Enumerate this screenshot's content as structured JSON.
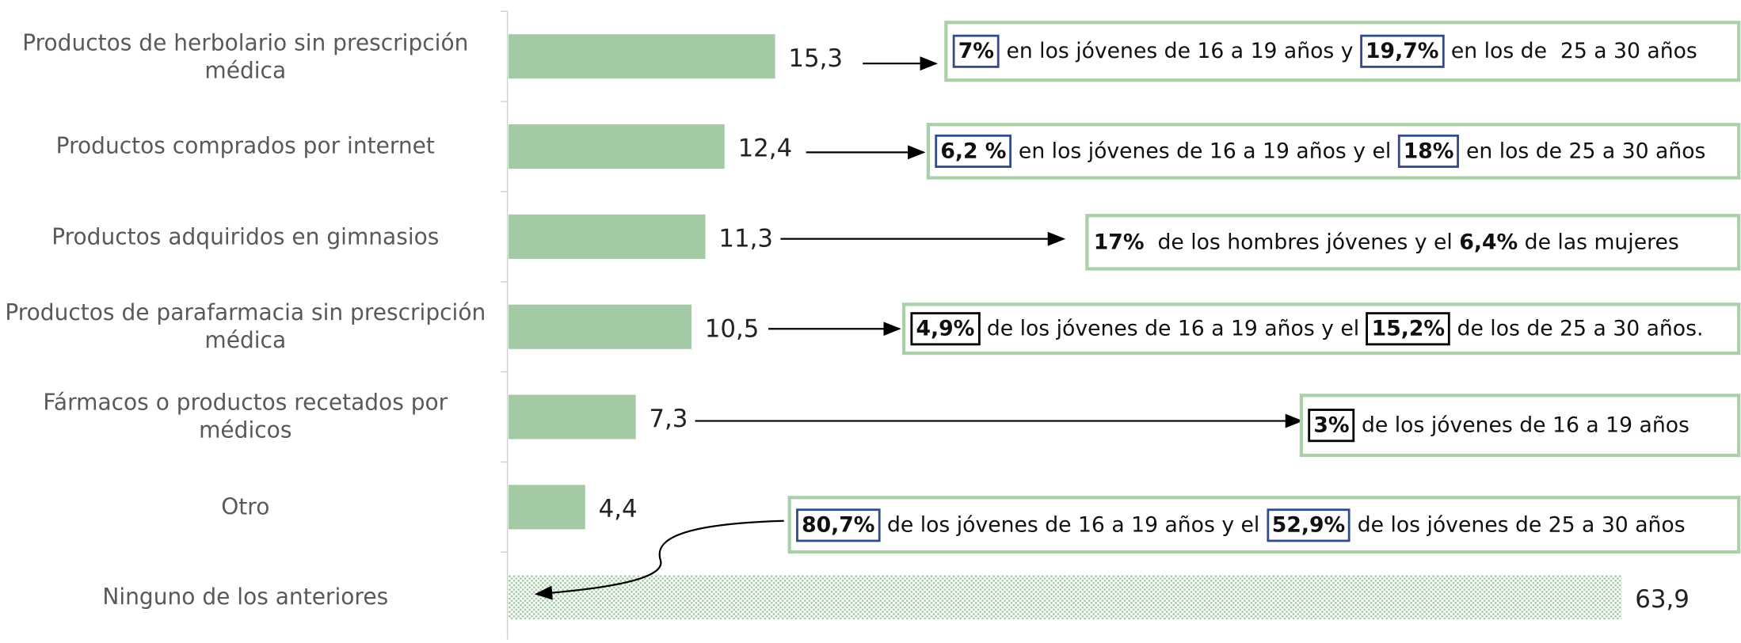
{
  "chart_data": {
    "type": "barh",
    "categories": [
      "Productos de herbolario sin prescripción médica",
      "Productos comprados por internet",
      "Productos adquiridos en gimnasios",
      "Productos de parafarmacia sin prescripción médica",
      "Fármacos o productos recetados por médicos",
      "Otro",
      "Ninguno de los anteriores"
    ],
    "values": [
      15.3,
      12.4,
      11.3,
      10.5,
      7.3,
      4.4,
      63.9
    ],
    "value_labels": [
      "15,3",
      "12,4",
      "11,3",
      "10,5",
      "7,3",
      "4,4",
      "63,9"
    ],
    "color": "#a3c9a5",
    "hatched": [
      false,
      false,
      false,
      false,
      false,
      false,
      true
    ],
    "annotations": [
      {
        "highlight_color": "#2f4b8c",
        "parts": [
          {
            "text": "7%",
            "bold": true,
            "boxed": true
          },
          {
            "text": " en los jóvenes de 16 a 19 años y "
          },
          {
            "text": "19,7%",
            "bold": true,
            "boxed": true
          },
          {
            "text": " en los de  25 a 30 años"
          }
        ]
      },
      {
        "highlight_color": "#2f4b8c",
        "parts": [
          {
            "text": "6,2 %",
            "bold": true,
            "boxed": true
          },
          {
            "text": " en los jóvenes de 16 a 19 años y el "
          },
          {
            "text": "18%",
            "bold": true,
            "boxed": true
          },
          {
            "text": " en los de 25 a 30 años"
          }
        ]
      },
      {
        "highlight_color": "#2f4b8c",
        "parts": [
          {
            "text": "17%",
            "bold": true
          },
          {
            "text": "  de los hombres jóvenes y el "
          },
          {
            "text": "6,4%",
            "bold": true
          },
          {
            "text": " de las mujeres"
          }
        ]
      },
      {
        "highlight_color": "#000000",
        "parts": [
          {
            "text": "4,9%",
            "bold": true,
            "boxed": true
          },
          {
            "text": " de los jóvenes de 16 a 19 años y el "
          },
          {
            "text": "15,2%",
            "bold": true,
            "boxed": true
          },
          {
            "text": " de los de 25 a 30 años."
          }
        ]
      },
      {
        "highlight_color": "#000000",
        "parts": [
          {
            "text": "3%",
            "bold": true,
            "boxed": true
          },
          {
            "text": " de los jóvenes de 16 a 19 años"
          }
        ]
      },
      {
        "highlight_color": "#2f4b8c",
        "parts": [
          {
            "text": "80,7%",
            "bold": true,
            "boxed": true
          },
          {
            "text": " de los jóvenes de 16 a 19 años y el "
          },
          {
            "text": "52,9%",
            "bold": true,
            "boxed": true
          },
          {
            "text": " de los jóvenes de 25 a 30 años"
          }
        ]
      }
    ],
    "annotation_border_color": "#a9d0a9"
  }
}
